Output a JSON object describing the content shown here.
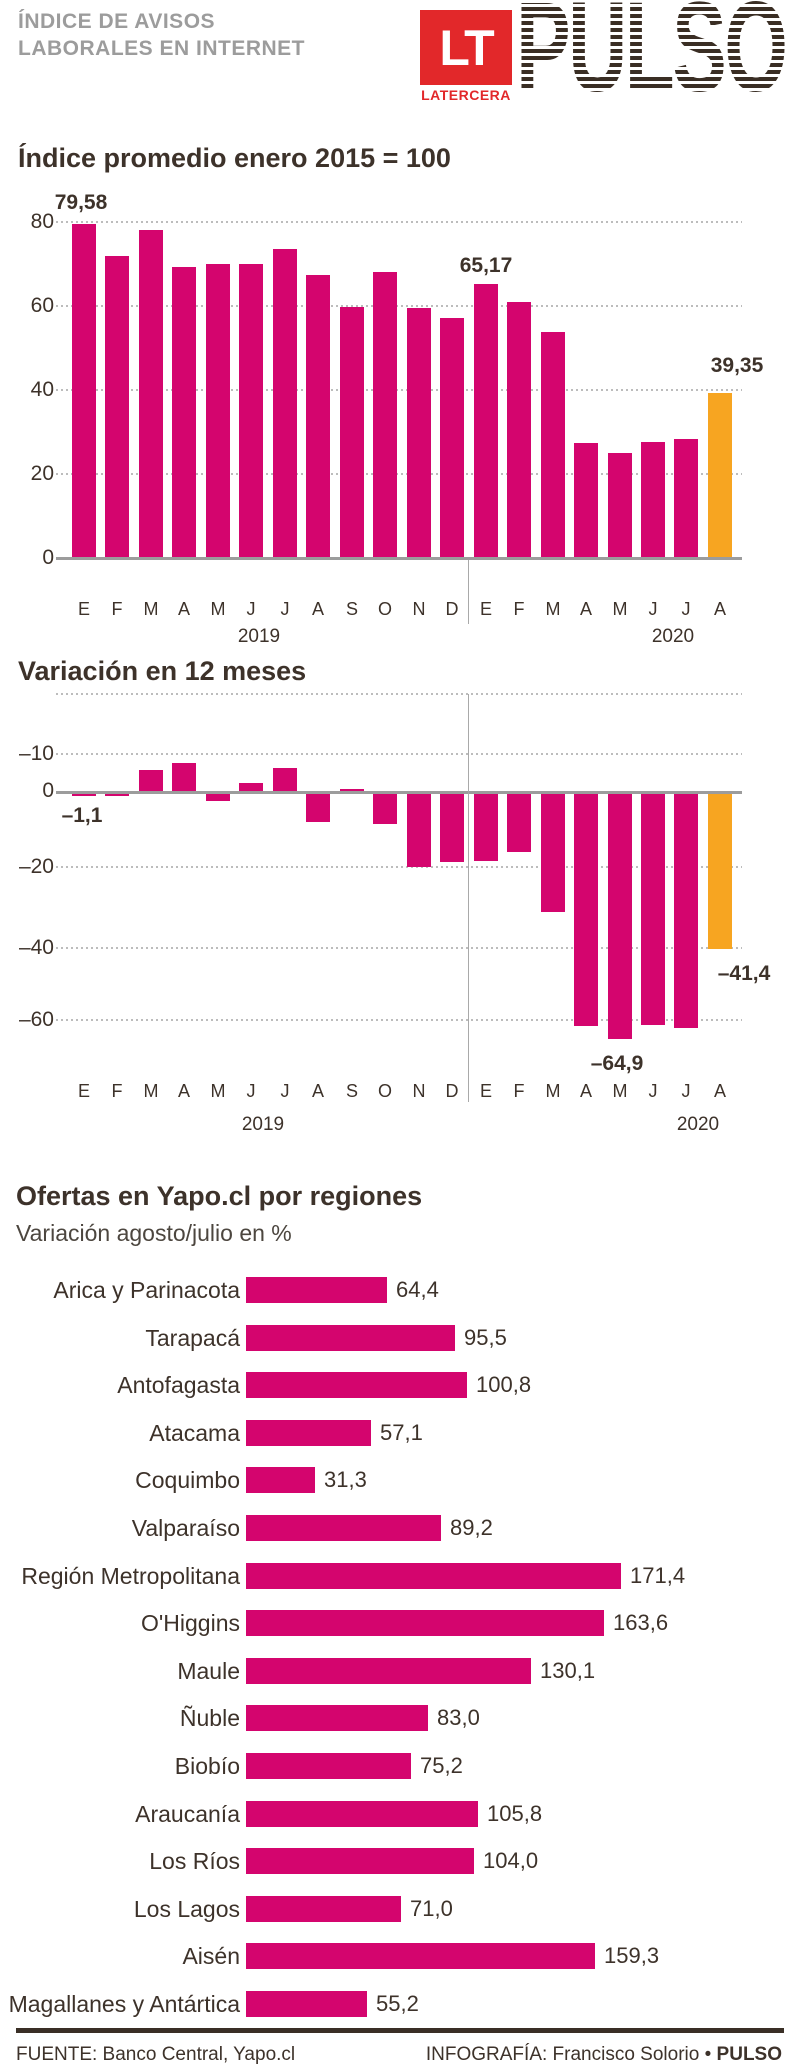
{
  "header": {
    "title_line1": "ÍNDICE DE AVISOS",
    "title_line2": "LABORALES EN INTERNET",
    "logo": {
      "lt": "LT",
      "latercera": "LATERCERA",
      "pulso": "PULSO"
    }
  },
  "colors": {
    "bar_pink": "#d4056e",
    "bar_orange": "#f7a521",
    "logo_red": "#e2282a",
    "logo_dark": "#3a2e24",
    "header_gray": "#9c9c9c",
    "text_dark": "#3d322a"
  },
  "chart_data": [
    {
      "type": "bar",
      "title": "Índice promedio enero 2015 = 100",
      "categories": [
        "E",
        "F",
        "M",
        "A",
        "M",
        "J",
        "J",
        "A",
        "S",
        "O",
        "N",
        "D",
        "E",
        "F",
        "M",
        "A",
        "M",
        "J",
        "J",
        "A"
      ],
      "year_labels": [
        "2019",
        "2020"
      ],
      "values": [
        79.58,
        72.0,
        78.2,
        69.4,
        70.1,
        69.9,
        73.5,
        67.3,
        59.7,
        68.2,
        59.5,
        57.1,
        65.17,
        60.9,
        53.8,
        27.3,
        24.9,
        27.7,
        28.4,
        39.35
      ],
      "ylim": [
        0,
        85
      ],
      "ytick_labels": [
        "80",
        "60",
        "40",
        "20",
        "0"
      ],
      "grid": "dotted-horizontal",
      "highlight_index": 19,
      "annotations": [
        {
          "index": 0,
          "label": "79,58",
          "value": 79.58
        },
        {
          "index": 12,
          "label": "65,17",
          "value": 65.17
        },
        {
          "index": 19,
          "label": "39,35",
          "value": 39.35
        }
      ]
    },
    {
      "type": "bar",
      "title": "Variación en 12 meses",
      "categories": [
        "E",
        "F",
        "M",
        "A",
        "M",
        "J",
        "J",
        "A",
        "S",
        "O",
        "N",
        "D",
        "E",
        "F",
        "M",
        "A",
        "M",
        "J",
        "J",
        "A"
      ],
      "year_labels": [
        "2019",
        "2020"
      ],
      "values": [
        -1.1,
        -1.0,
        5.7,
        7.7,
        -2.4,
        2.4,
        6.4,
        -7.9,
        0.9,
        -8.4,
        -19.7,
        -18.3,
        -18.1,
        -15.7,
        -31.5,
        -61.5,
        -64.9,
        -61.4,
        -62.2,
        -41.4
      ],
      "ylim": [
        -68,
        25
      ],
      "ytick_labels": [
        "–10",
        "0",
        "–20",
        "–40",
        "–60"
      ],
      "grid": "dotted-horizontal",
      "highlight_index": 19,
      "annotations": [
        {
          "index": 0,
          "label": "–1,1",
          "value": -1.1
        },
        {
          "index": 16,
          "label": "–64,9",
          "value": -64.9
        },
        {
          "index": 19,
          "label": "–41,4",
          "value": -41.4
        }
      ]
    },
    {
      "type": "bar_horizontal",
      "title": "Ofertas en Yapo.cl por regiones",
      "subtitle": "Variación agosto/julio en %",
      "categories": [
        "Arica y Parinacota",
        "Tarapacá",
        "Antofagasta",
        "Atacama",
        "Coquimbo",
        "Valparaíso",
        "Región Metropolitana",
        "O'Higgins",
        "Maule",
        "Ñuble",
        "Biobío",
        "Araucanía",
        "Los Ríos",
        "Los Lagos",
        "Aisén",
        "Magallanes y Antártica"
      ],
      "values": [
        64.4,
        95.5,
        100.8,
        57.1,
        31.3,
        89.2,
        171.4,
        163.6,
        130.1,
        83.0,
        75.2,
        105.8,
        104.0,
        71.0,
        159.3,
        55.2
      ],
      "value_labels": [
        "64,4",
        "95,5",
        "100,8",
        "57,1",
        "31,3",
        "89,2",
        "171,4",
        "163,6",
        "130,1",
        "83,0",
        "75,2",
        "105,8",
        "104,0",
        "71,0",
        "159,3",
        "55,2"
      ],
      "xlim": [
        0,
        180
      ]
    }
  ],
  "footer": {
    "source": "FUENTE: Banco Central, Yapo.cl",
    "credit": "INFOGRAFÍA: Francisco Solorio • ",
    "credit_bold": "PULSO"
  }
}
